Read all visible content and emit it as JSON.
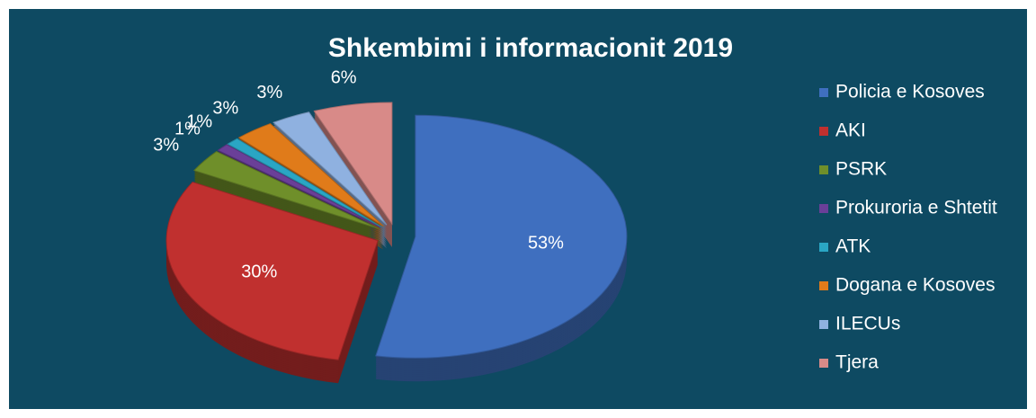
{
  "chart_data": {
    "type": "pie",
    "title": "Shkembimi i informacionit 2019",
    "categories": [
      "Policia e Kosoves",
      "AKI",
      "PSRK",
      "Prokuroria e Shtetit",
      "ATK",
      "Dogana e Kosoves",
      "ILECUs",
      "Tjera"
    ],
    "values": [
      53,
      30,
      3,
      1,
      1,
      3,
      3,
      6
    ],
    "value_labels": [
      "53%",
      "30%",
      "3%",
      "1%",
      "1%",
      "3%",
      "3%",
      "6%"
    ],
    "colors": [
      "#3f6fbf",
      "#c0302f",
      "#6f8f2a",
      "#6a3f98",
      "#2aa6c4",
      "#e07b1a",
      "#8fb1e0",
      "#d88a88"
    ],
    "legend": "right"
  }
}
